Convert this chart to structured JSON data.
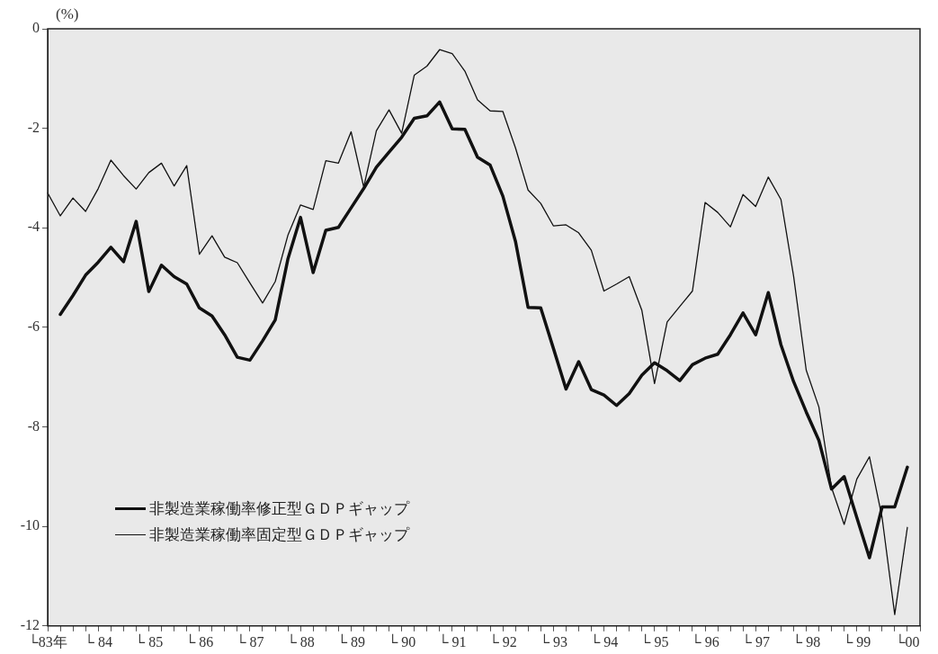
{
  "chart_data": {
    "type": "line",
    "ylabel": "(%)",
    "categories": [
      "└83年",
      null,
      null,
      null,
      "└ 84",
      null,
      null,
      null,
      "└ 85",
      null,
      null,
      null,
      "└ 86",
      null,
      null,
      null,
      "└ 87",
      null,
      null,
      null,
      "└ 88",
      null,
      null,
      null,
      "└ 89",
      null,
      null,
      null,
      "└ 90",
      null,
      null,
      null,
      "└ 91",
      null,
      null,
      null,
      "└ 92",
      null,
      null,
      null,
      "└ 93",
      null,
      null,
      null,
      "└ 94",
      null,
      null,
      null,
      "└ 95",
      null,
      null,
      null,
      "└ 96",
      null,
      null,
      null,
      "└ 97",
      null,
      null,
      null,
      "└ 98",
      null,
      null,
      null,
      "└ 99",
      null,
      null,
      null,
      "└00",
      null
    ],
    "series": [
      {
        "name": "非製造業稼働率修正型ＧＤＰギャップ",
        "color": "#111111",
        "values": [
          null,
          -5.74,
          -5.36,
          -4.95,
          -4.69,
          -4.39,
          -4.68,
          -3.87,
          -5.28,
          -4.75,
          -4.98,
          -5.13,
          -5.61,
          -5.77,
          -6.15,
          -6.6,
          -6.66,
          -6.27,
          -5.85,
          -4.63,
          -3.79,
          -4.9,
          -4.05,
          -3.99,
          -3.6,
          -3.21,
          -2.78,
          -2.48,
          -2.18,
          -1.8,
          -1.75,
          -1.47,
          -2.01,
          -2.02,
          -2.58,
          -2.74,
          -3.36,
          -4.27,
          -5.6,
          -5.61,
          -6.42,
          -7.24,
          -6.69,
          -7.25,
          -7.36,
          -7.57,
          -7.33,
          -6.96,
          -6.71,
          -6.87,
          -7.07,
          -6.75,
          -6.62,
          -6.54,
          -6.15,
          -5.71,
          -6.15,
          -5.3,
          -6.35,
          -7.09,
          -7.7,
          -8.27,
          -9.25,
          -9.0,
          -9.82,
          -10.63,
          -9.61,
          -9.61,
          -8.81,
          null
        ]
      },
      {
        "name": "非製造業稼働率固定型ＧＤＰギャップ",
        "color": "#111111",
        "values": [
          -3.3,
          -3.76,
          -3.4,
          -3.67,
          -3.21,
          -2.64,
          -2.95,
          -3.22,
          -2.89,
          -2.7,
          -3.16,
          -2.75,
          -4.53,
          -4.16,
          -4.59,
          -4.7,
          -5.11,
          -5.51,
          -5.08,
          -4.15,
          -3.54,
          -3.63,
          -2.65,
          -2.7,
          -2.07,
          -3.18,
          -2.05,
          -1.63,
          -2.1,
          -0.93,
          -0.75,
          -0.42,
          -0.5,
          -0.85,
          -1.43,
          -1.65,
          -1.66,
          -2.39,
          -3.24,
          -3.51,
          -3.96,
          -3.94,
          -4.1,
          -4.45,
          -5.27,
          -5.13,
          -4.98,
          -5.66,
          -7.13,
          -5.89,
          -5.58,
          -5.27,
          -3.49,
          -3.69,
          -3.98,
          -3.33,
          -3.57,
          -2.98,
          -3.43,
          -4.97,
          -6.86,
          -7.6,
          -9.22,
          -9.96,
          -9.05,
          -8.6,
          -9.82,
          -11.77,
          -10.02,
          null
        ]
      }
    ],
    "ylim": [
      -12,
      0
    ],
    "yticks": [
      0,
      -2,
      -4,
      -6,
      -8,
      -10,
      -12
    ],
    "grid": false,
    "legend": "bottom left",
    "marker": "none",
    "line_style": "solid"
  }
}
